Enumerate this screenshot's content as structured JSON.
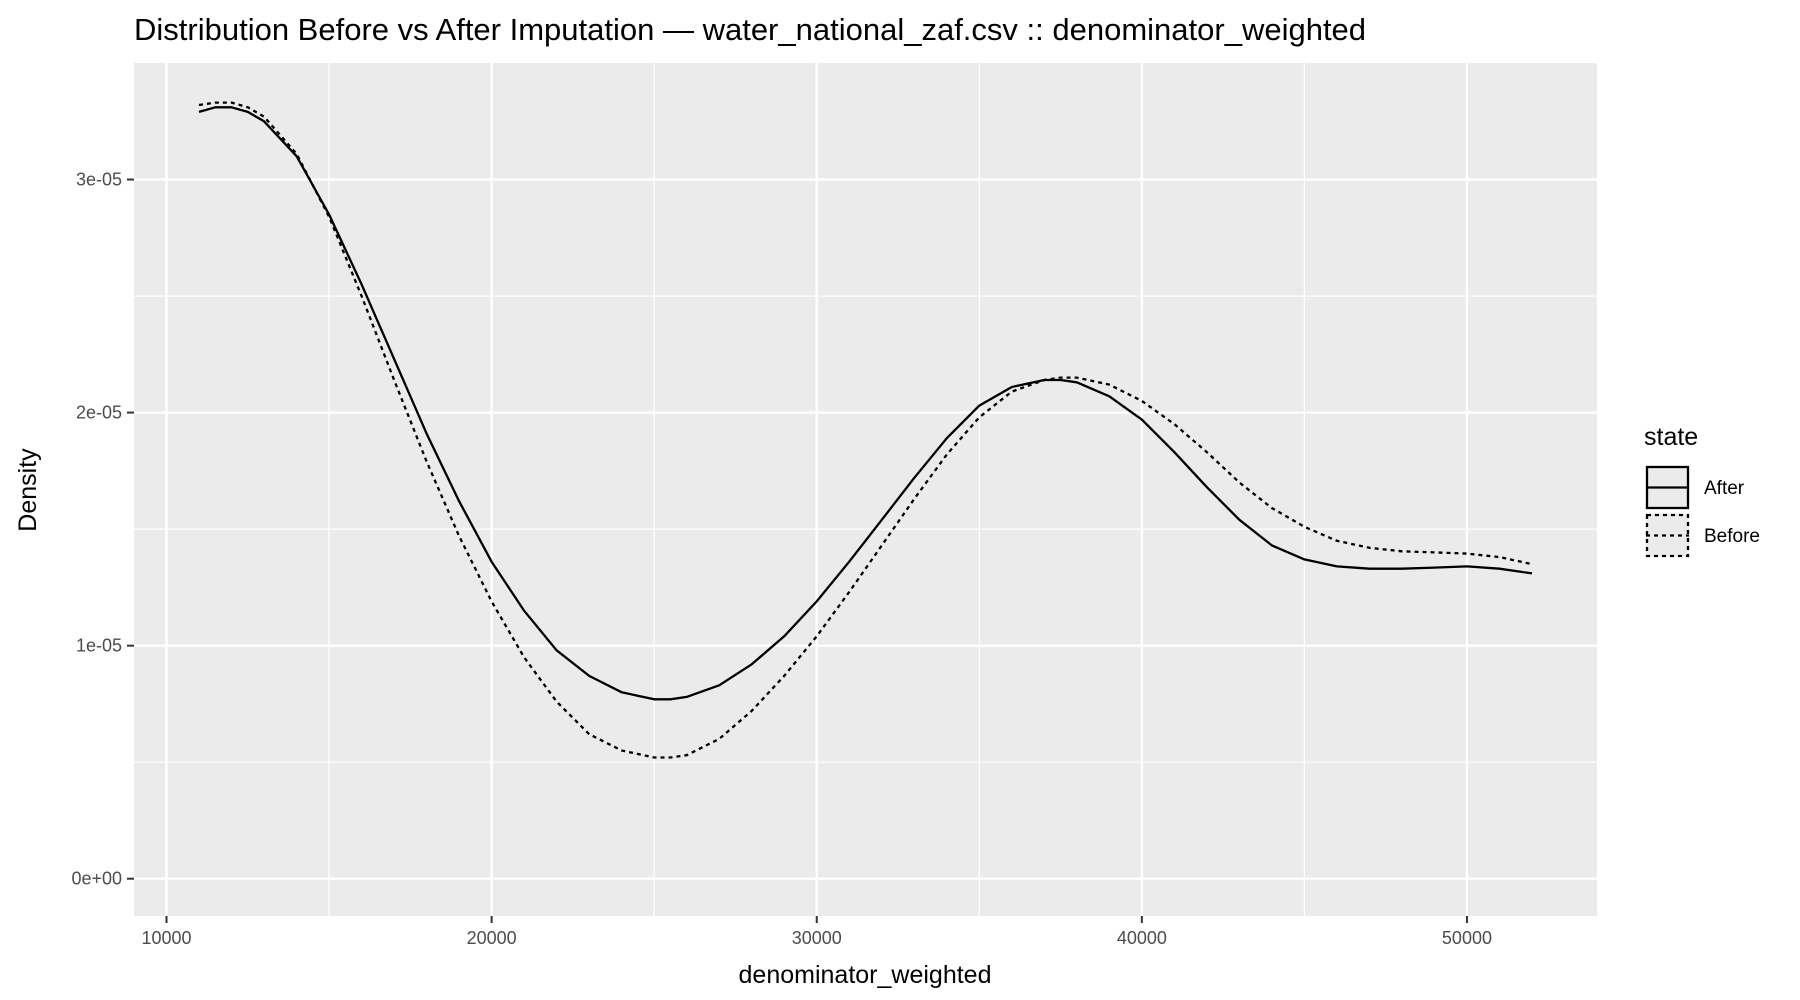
{
  "chart_data": {
    "type": "line",
    "title": "Distribution Before vs After Imputation — water_national_zaf.csv :: denominator_weighted",
    "xlabel": "denominator_weighted",
    "ylabel": "Density",
    "xlim": [
      9000,
      54000
    ],
    "ylim": [
      -1.6e-06,
      3.5e-05
    ],
    "x_ticks": [
      10000,
      20000,
      30000,
      40000,
      50000
    ],
    "x_tick_labels": [
      "10000",
      "20000",
      "30000",
      "40000",
      "50000"
    ],
    "y_ticks": [
      0,
      1e-05,
      2e-05,
      3e-05
    ],
    "y_tick_labels": [
      "0e+00",
      "1e-05",
      "2e-05",
      "3e-05"
    ],
    "grid": true,
    "legend": {
      "title": "state",
      "position": "right",
      "entries": [
        {
          "label": "After",
          "linetype": "solid"
        },
        {
          "label": "Before",
          "linetype": "dashed"
        }
      ]
    },
    "colors": {
      "panel_background": "#ebebeb",
      "grid_major": "#ffffff",
      "line": "#000000"
    },
    "series": [
      {
        "name": "After",
        "linetype": "solid",
        "x": [
          11000,
          11500,
          12000,
          12500,
          13000,
          14000,
          15000,
          16000,
          17000,
          18000,
          19000,
          20000,
          21000,
          22000,
          23000,
          24000,
          25000,
          25500,
          26000,
          27000,
          28000,
          29000,
          30000,
          31000,
          32000,
          33000,
          34000,
          35000,
          36000,
          37000,
          37500,
          38000,
          39000,
          40000,
          41000,
          42000,
          43000,
          44000,
          45000,
          46000,
          47000,
          48000,
          49000,
          50000,
          51000,
          52000
        ],
        "y": [
          3.29e-05,
          3.31e-05,
          3.31e-05,
          3.29e-05,
          3.25e-05,
          3.1e-05,
          2.85e-05,
          2.55e-05,
          2.23e-05,
          1.91e-05,
          1.62e-05,
          1.36e-05,
          1.15e-05,
          9.8e-06,
          8.7e-06,
          8e-06,
          7.7e-06,
          7.7e-06,
          7.8e-06,
          8.3e-06,
          9.2e-06,
          1.04e-05,
          1.19e-05,
          1.36e-05,
          1.54e-05,
          1.72e-05,
          1.89e-05,
          2.03e-05,
          2.11e-05,
          2.14e-05,
          2.14e-05,
          2.13e-05,
          2.07e-05,
          1.97e-05,
          1.83e-05,
          1.68e-05,
          1.54e-05,
          1.43e-05,
          1.37e-05,
          1.34e-05,
          1.33e-05,
          1.33e-05,
          1.335e-05,
          1.34e-05,
          1.33e-05,
          1.31e-05
        ]
      },
      {
        "name": "Before",
        "linetype": "dashed",
        "x": [
          11000,
          11500,
          12000,
          12500,
          13000,
          14000,
          15000,
          16000,
          17000,
          18000,
          19000,
          20000,
          21000,
          22000,
          23000,
          24000,
          25000,
          25500,
          26000,
          27000,
          28000,
          29000,
          30000,
          31000,
          32000,
          33000,
          34000,
          35000,
          36000,
          37000,
          37500,
          38000,
          39000,
          40000,
          41000,
          42000,
          43000,
          44000,
          45000,
          46000,
          47000,
          48000,
          49000,
          50000,
          51000,
          52000
        ],
        "y": [
          3.32e-05,
          3.33e-05,
          3.33e-05,
          3.31e-05,
          3.27e-05,
          3.11e-05,
          2.84e-05,
          2.5e-05,
          2.14e-05,
          1.79e-05,
          1.47e-05,
          1.19e-05,
          9.5e-06,
          7.6e-06,
          6.2e-06,
          5.5e-06,
          5.2e-06,
          5.2e-06,
          5.3e-06,
          6e-06,
          7.2e-06,
          8.7e-06,
          1.04e-05,
          1.23e-05,
          1.43e-05,
          1.63e-05,
          1.82e-05,
          1.98e-05,
          2.09e-05,
          2.14e-05,
          2.15e-05,
          2.15e-05,
          2.12e-05,
          2.05e-05,
          1.95e-05,
          1.83e-05,
          1.7e-05,
          1.59e-05,
          1.51e-05,
          1.45e-05,
          1.42e-05,
          1.405e-05,
          1.4e-05,
          1.395e-05,
          1.38e-05,
          1.35e-05
        ]
      }
    ]
  }
}
